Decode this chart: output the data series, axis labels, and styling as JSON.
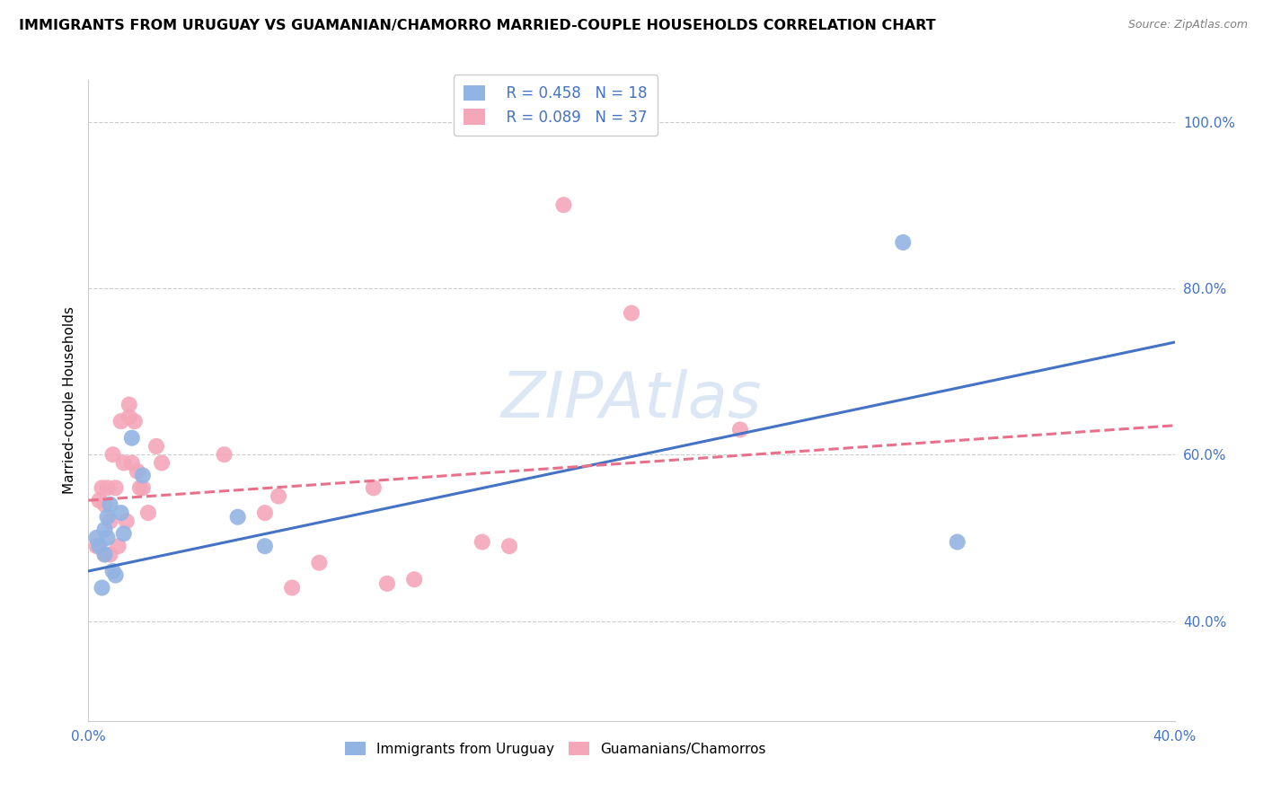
{
  "title": "IMMIGRANTS FROM URUGUAY VS GUAMANIAN/CHAMORRO MARRIED-COUPLE HOUSEHOLDS CORRELATION CHART",
  "source": "Source: ZipAtlas.com",
  "ylabel": "Married-couple Households",
  "xmin": 0.0,
  "xmax": 0.4,
  "ymin": 0.28,
  "ymax": 1.05,
  "yticks": [
    0.4,
    0.6,
    0.8,
    1.0
  ],
  "xticks": [
    0.0,
    0.05,
    0.1,
    0.15,
    0.2,
    0.25,
    0.3,
    0.35,
    0.4
  ],
  "ytick_labels": [
    "40.0%",
    "60.0%",
    "80.0%",
    "100.0%"
  ],
  "legend_r1": "R = 0.458",
  "legend_n1": "N = 18",
  "legend_r2": "R = 0.089",
  "legend_n2": "N = 37",
  "blue_color": "#92b4e3",
  "pink_color": "#f4a7b9",
  "blue_line_color": "#4472c4",
  "pink_line_color": "#e8708a",
  "blue_text_color": "#4472c4",
  "blue_scatter_x": [
    0.003,
    0.004,
    0.005,
    0.006,
    0.006,
    0.007,
    0.007,
    0.008,
    0.009,
    0.01,
    0.012,
    0.013,
    0.016,
    0.02,
    0.055,
    0.065,
    0.3,
    0.32
  ],
  "blue_scatter_y": [
    0.5,
    0.49,
    0.44,
    0.48,
    0.51,
    0.525,
    0.5,
    0.54,
    0.46,
    0.455,
    0.53,
    0.505,
    0.62,
    0.575,
    0.525,
    0.49,
    0.855,
    0.495
  ],
  "pink_scatter_x": [
    0.003,
    0.004,
    0.005,
    0.006,
    0.006,
    0.007,
    0.008,
    0.008,
    0.009,
    0.01,
    0.011,
    0.012,
    0.013,
    0.014,
    0.015,
    0.015,
    0.016,
    0.017,
    0.018,
    0.019,
    0.02,
    0.022,
    0.025,
    0.027,
    0.05,
    0.065,
    0.07,
    0.075,
    0.085,
    0.105,
    0.11,
    0.12,
    0.145,
    0.155,
    0.175,
    0.2,
    0.24
  ],
  "pink_scatter_y": [
    0.49,
    0.545,
    0.56,
    0.48,
    0.54,
    0.56,
    0.48,
    0.52,
    0.6,
    0.56,
    0.49,
    0.64,
    0.59,
    0.52,
    0.645,
    0.66,
    0.59,
    0.64,
    0.58,
    0.56,
    0.56,
    0.53,
    0.61,
    0.59,
    0.6,
    0.53,
    0.55,
    0.44,
    0.47,
    0.56,
    0.445,
    0.45,
    0.495,
    0.49,
    0.9,
    0.77,
    0.63
  ],
  "blue_line_x": [
    0.0,
    0.4
  ],
  "blue_line_y": [
    0.46,
    0.735
  ],
  "pink_line_x": [
    0.0,
    0.4
  ],
  "pink_line_y": [
    0.545,
    0.635
  ]
}
